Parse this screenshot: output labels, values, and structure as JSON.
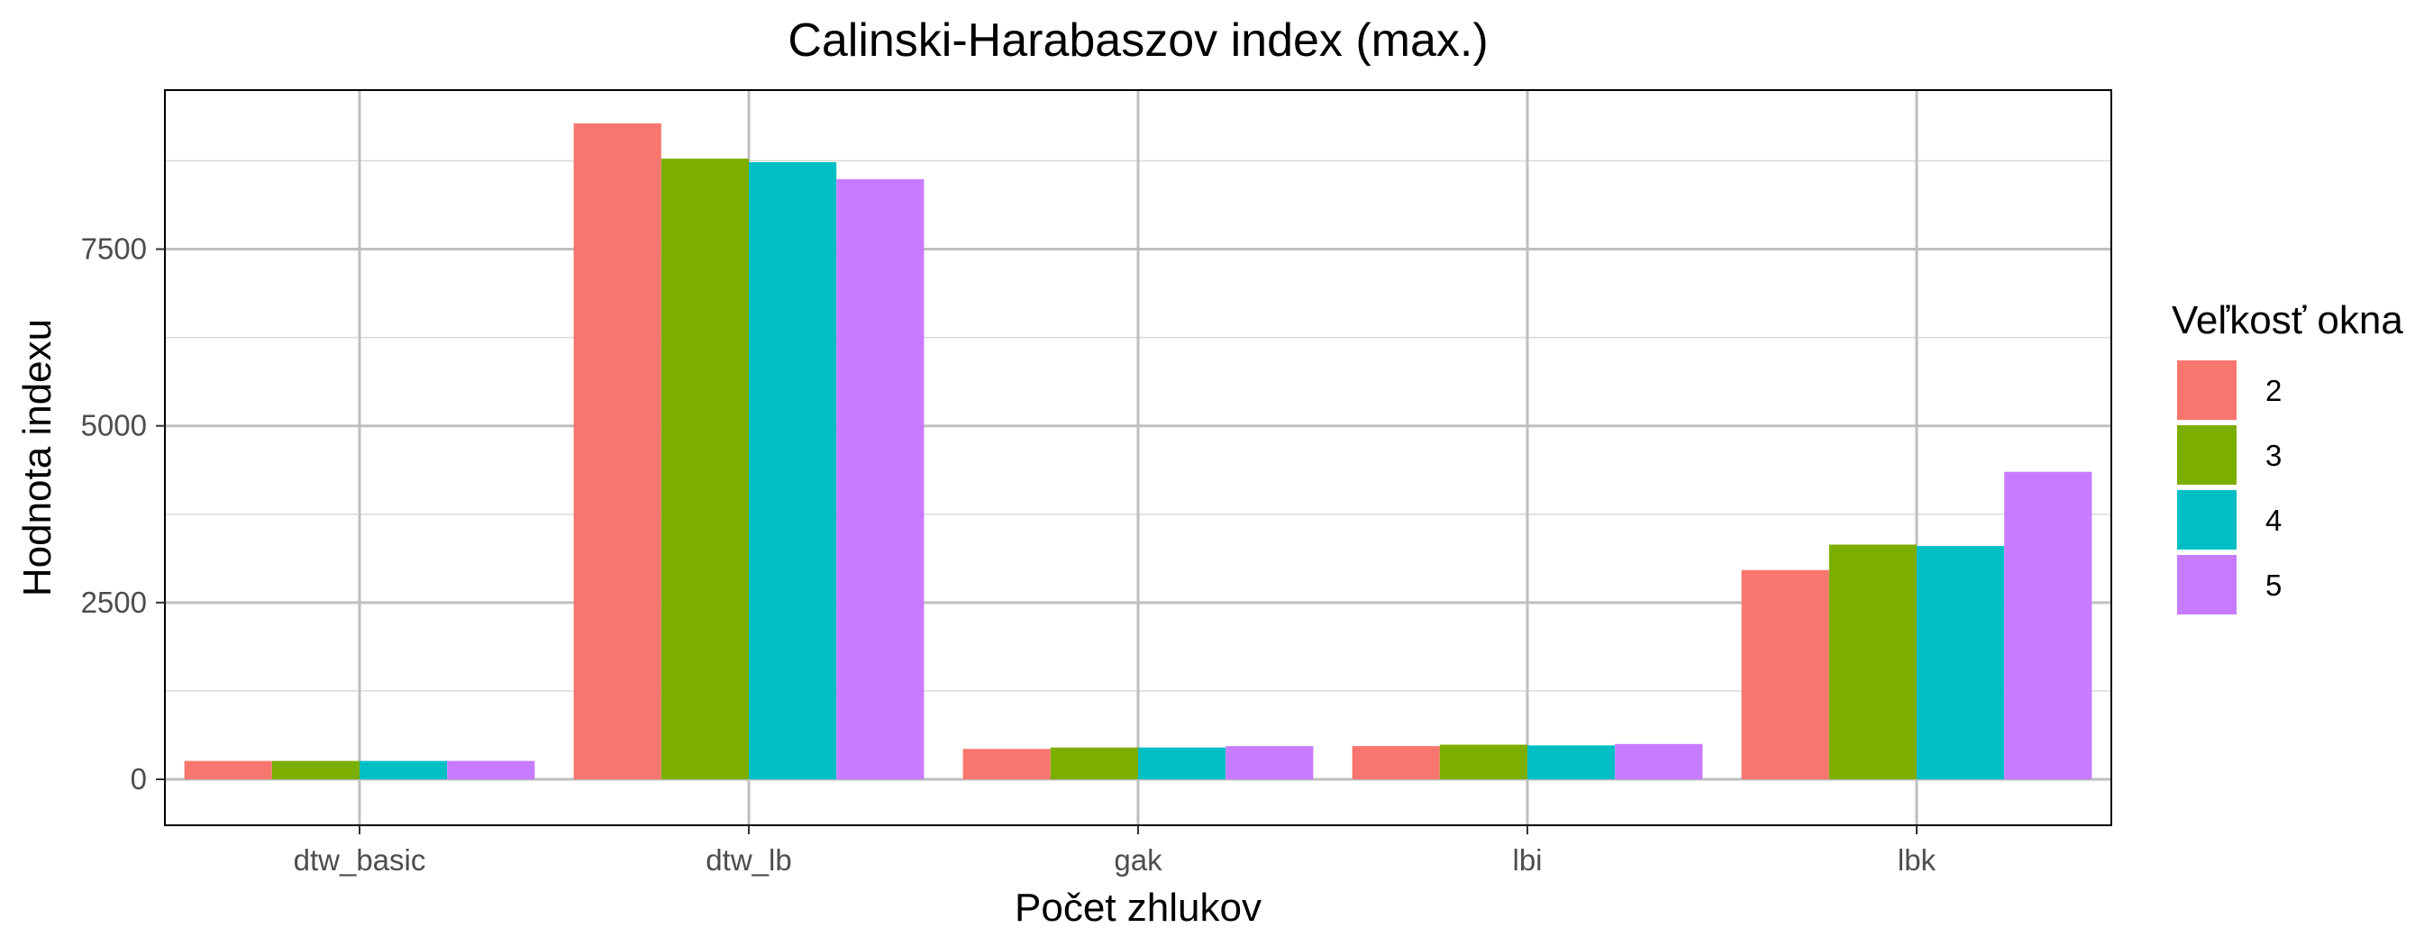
{
  "chart_data": {
    "type": "bar",
    "title": "Calinski-Harabaszov index (max.)",
    "xlabel": "Počet zhlukov",
    "ylabel": "Hodnota indexu",
    "categories": [
      "dtw_basic",
      "dtw_lb",
      "gak",
      "lbi",
      "lbk"
    ],
    "ylim": [
      -650,
      9750
    ],
    "yticks": [
      0,
      2500,
      5000,
      7500
    ],
    "yticks_labels": [
      "0",
      "2500",
      "5000",
      "7500"
    ],
    "grid": true,
    "legend": {
      "title": "Veľkosť okna",
      "position": "right"
    },
    "series": [
      {
        "name": "2",
        "color": "#F8766D",
        "values": [
          260,
          9280,
          430,
          470,
          2960
        ]
      },
      {
        "name": "3",
        "color": "#7CAE00",
        "values": [
          260,
          8780,
          450,
          490,
          3320
        ]
      },
      {
        "name": "4",
        "color": "#00BFC4",
        "values": [
          260,
          8730,
          450,
          480,
          3300
        ]
      },
      {
        "name": "5",
        "color": "#C77CFF",
        "values": [
          260,
          8490,
          470,
          500,
          4350
        ]
      }
    ]
  }
}
